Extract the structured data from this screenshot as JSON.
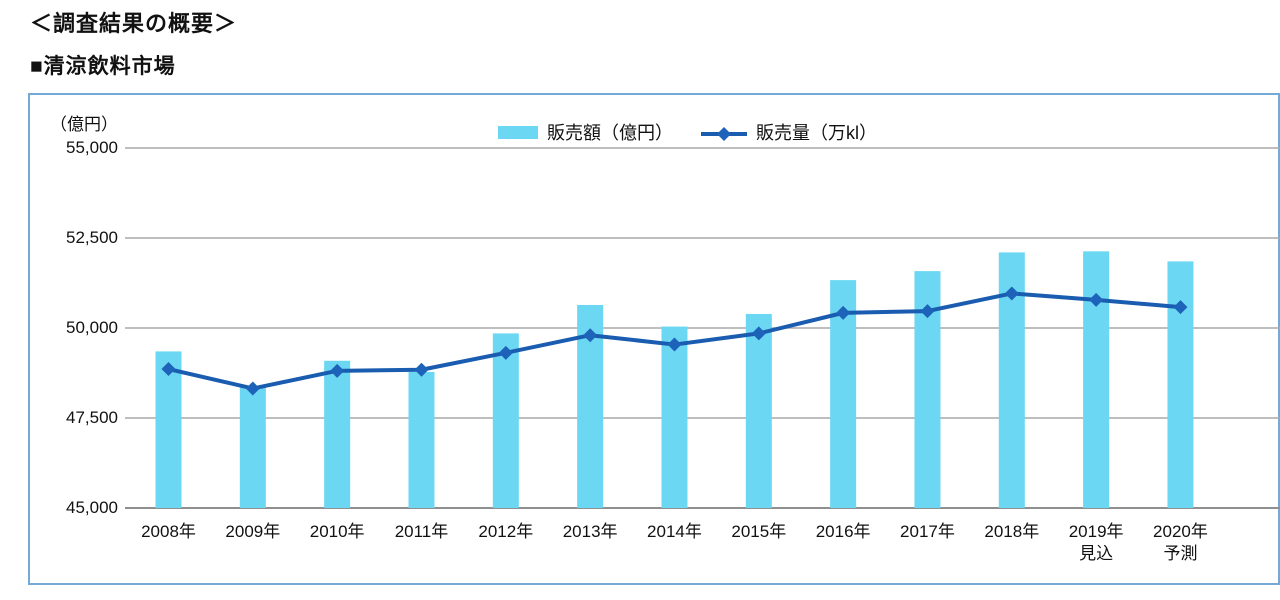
{
  "page": {
    "title": "＜調査結果の概要＞",
    "section_title": "■清涼飲料市場"
  },
  "chart_data": {
    "type": "bar+line",
    "title": "",
    "categories": [
      "2008年",
      "2009年",
      "2010年",
      "2011年",
      "2012年",
      "2013年",
      "2014年",
      "2015年",
      "2016年",
      "2017年",
      "2018年",
      "2019年",
      "2020年"
    ],
    "category_sublabels": [
      "",
      "",
      "",
      "",
      "",
      "",
      "",
      "",
      "",
      "",
      "",
      "見込",
      "予測"
    ],
    "series": [
      {
        "name": "販売額（億円）",
        "type": "bar",
        "axis": "left",
        "values": [
          49350,
          48370,
          49090,
          48780,
          49850,
          50640,
          50040,
          50390,
          51330,
          51580,
          52100,
          52130,
          51850
        ]
      },
      {
        "name": "販売量（万kl）",
        "type": "line",
        "axis": "right-axis-not-visible-in-crop",
        "values_plotted_on_left_axis_scale": [
          48860,
          48320,
          48810,
          48840,
          49310,
          49800,
          49540,
          49850,
          50420,
          50470,
          50960,
          50780,
          50580
        ]
      }
    ],
    "y_axis": {
      "unit_label": "（億円）",
      "range": [
        45000,
        55000
      ],
      "ticks": [
        {
          "label": "55,000",
          "value": 55000
        },
        {
          "label": "52,500",
          "value": 52500
        },
        {
          "label": "50,000",
          "value": 50000
        },
        {
          "label": "47,500",
          "value": 47500
        },
        {
          "label": "45,000",
          "value": 45000
        }
      ]
    },
    "legend": {
      "position": "top-center",
      "items": [
        {
          "label": "販売額（億円）",
          "swatch": "bar"
        },
        {
          "label": "販売量（万kl）",
          "swatch": "line-diamond"
        }
      ]
    },
    "layout_hints": {
      "grid": true,
      "right_axis_cropped": true,
      "right_edge_cropped": true
    },
    "colors": {
      "bar": "#6bd7f2",
      "line": "#1a5cb0",
      "marker": "#1e63ba",
      "grid": "#a9a9a9",
      "axis": "#8f8f8f",
      "frame_border": "#74a9d8",
      "text": "#111111"
    }
  }
}
